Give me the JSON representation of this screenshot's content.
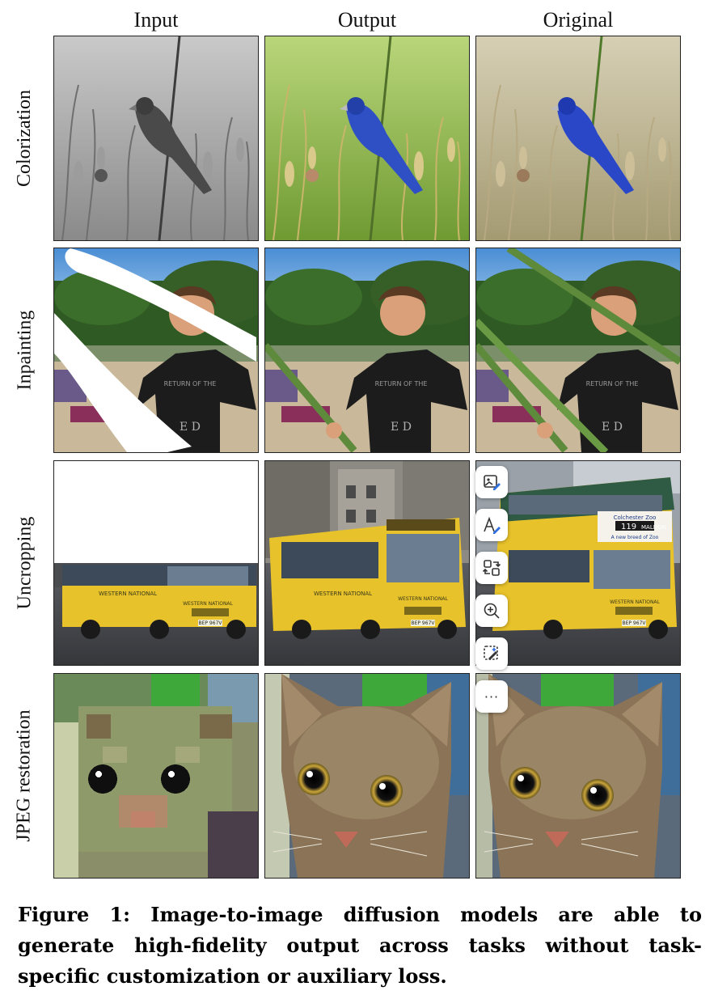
{
  "figure": {
    "columns": [
      "Input",
      "Output",
      "Original"
    ],
    "rows": [
      "Colorization",
      "Inpainting",
      "Uncropping",
      "JPEG restoration"
    ],
    "caption": "Figure 1: Image-to-image diffusion models are able to generate high-fidelity output across tasks without task-specific customization or auxiliary loss."
  },
  "photo_text": {
    "bus_side": "WESTERN NATIONAL",
    "bus_front": "WESTERN NATIONAL",
    "bus_plate": "BEP 967V",
    "bus_route_number": "119",
    "bus_destination": "MALDON",
    "bus_banner_top": "Colchester Zoo",
    "bus_banner_bottom": "A new breed of Zoo",
    "shirt_text_top": "RETURN OF THE",
    "shirt_text_bottom": "E D"
  },
  "toolbar": {
    "icons": [
      "image-edit-icon",
      "text-edit-icon",
      "swap-icon",
      "zoom-in-icon",
      "magic-select-icon",
      "more-icon"
    ],
    "more_label": "···"
  },
  "colors": {
    "bird_blue": "#2f4fc4",
    "bus_yellow": "#e8c22a",
    "grass_green": "#8ab84a",
    "cat_brown": "#8a7356"
  }
}
